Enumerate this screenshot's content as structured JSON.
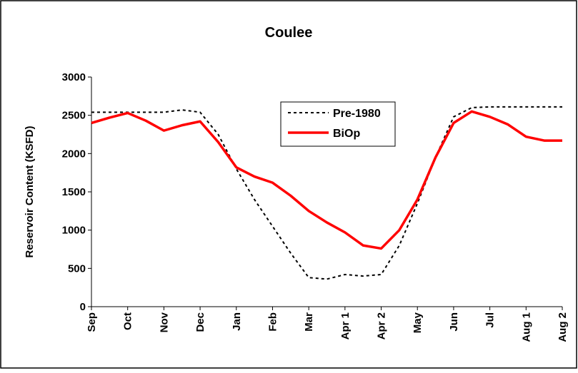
{
  "chart_data": {
    "type": "line",
    "title": "Coulee",
    "y_label": "Reservoir Content (KSFD)",
    "categories": [
      "Sep",
      null,
      "Oct",
      null,
      "Nov",
      null,
      "Dec",
      null,
      "Jan",
      null,
      "Feb",
      null,
      "Mar",
      null,
      "Apr 1",
      null,
      "Apr 2",
      null,
      "May",
      null,
      "Jun",
      null,
      "Jul",
      null,
      "Aug 1",
      null,
      "Aug 2"
    ],
    "series": [
      {
        "name": "Pre-1980",
        "color": "#000000",
        "dash": true,
        "values": [
          2540,
          2540,
          2540,
          2540,
          2540,
          2570,
          2540,
          2250,
          1800,
          1400,
          1050,
          700,
          380,
          360,
          420,
          400,
          420,
          800,
          1350,
          1950,
          2480,
          2600,
          2610,
          2610,
          2610,
          2610,
          2610
        ]
      },
      {
        "name": "BiOp",
        "color": "#ff0000",
        "dash": false,
        "values": [
          2400,
          2470,
          2530,
          2430,
          2300,
          2370,
          2420,
          2150,
          1820,
          1700,
          1620,
          1450,
          1250,
          1100,
          970,
          800,
          760,
          1000,
          1400,
          1950,
          2400,
          2550,
          2480,
          2380,
          2220,
          2170,
          2170
        ]
      }
    ],
    "ylim": [
      0,
      3000
    ],
    "yticks": [
      0,
      500,
      1000,
      1500,
      2000,
      2500,
      3000
    ],
    "grid": false
  }
}
